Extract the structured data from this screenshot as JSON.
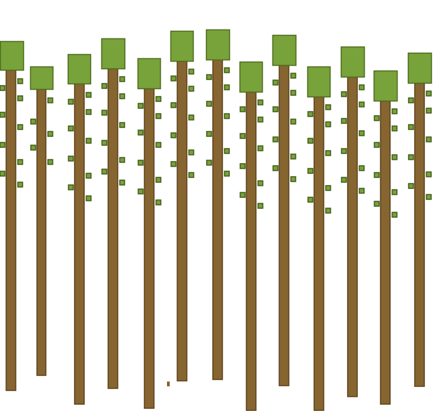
{
  "scene": {
    "kind": "side-view forest of tall pixel-style trees",
    "tree_count": 13,
    "colors": {
      "background": "#ffffff",
      "trunk": "#866530",
      "trunk_outline": "#5a3f18",
      "canopy": "#78a23a",
      "canopy_outline": "#4d6a1e",
      "leaf": "#78a23a",
      "leaf_outline": "#3f5a16",
      "marker": "#866530"
    }
  }
}
